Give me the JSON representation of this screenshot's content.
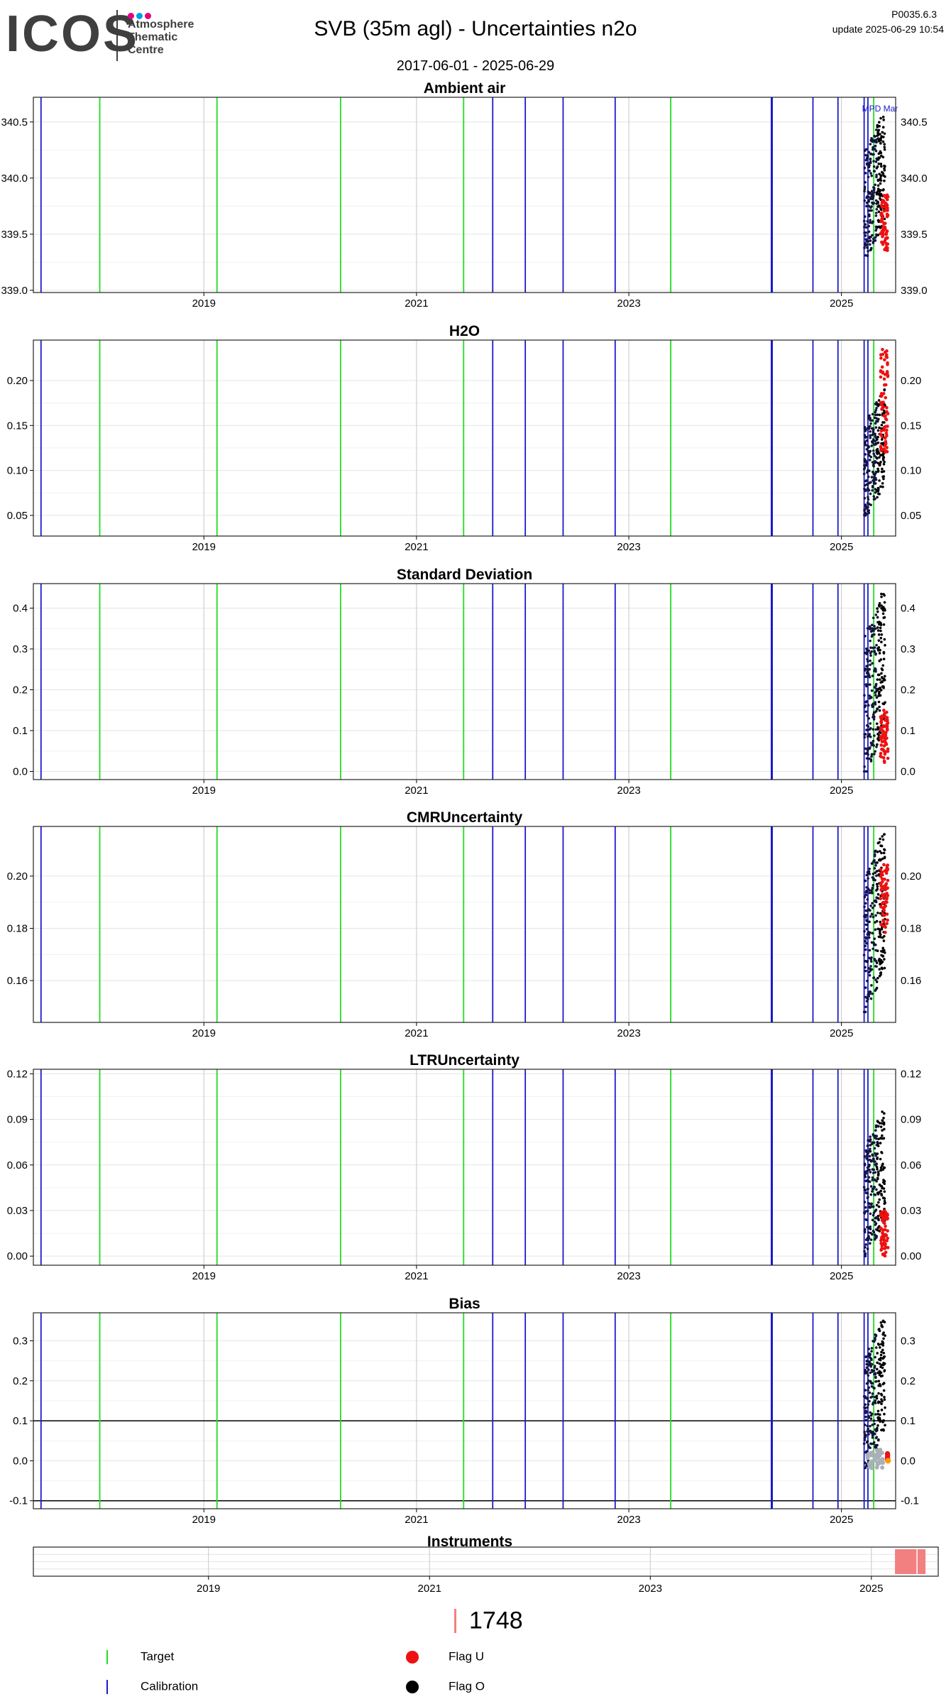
{
  "header": {
    "logo_text": "ICOS",
    "logo_sub": [
      "Atmosphere",
      "Thematic",
      "Centre"
    ],
    "logo_colors": [
      "#e6007e",
      "#00a0e3",
      "#e6007e"
    ],
    "title": "SVB  (35m agl) - Uncertainties n2o",
    "date_range": "2017-06-01 - 2025-06-29",
    "version": "P0035.6.3",
    "update": "update  2025-06-29 10:54"
  },
  "colors": {
    "target": "#22dd22",
    "calibration": "#1a1acc",
    "flag_u": "#ee1111",
    "flag_o": "#000000",
    "ambient_points": "#14143c",
    "bias_gray": "#aab0b8",
    "bias_orange": "#ff9900",
    "instrument": "#f28080"
  },
  "chart_data": [
    {
      "type": "scatter",
      "title": "Ambient air",
      "xlim": [
        "2017-06-01",
        "2025-06-29"
      ],
      "x_ticks": [
        "2019",
        "2021",
        "2023",
        "2025"
      ],
      "ylim": [
        338.98,
        340.72
      ],
      "y_ticks": [
        "339.0",
        "339.5",
        "340.0",
        "340.5"
      ],
      "annotation": "MPD Mar",
      "grid": true,
      "series": [
        {
          "name": "Flag O",
          "values_range": [
            339.3,
            340.55
          ],
          "x_range": [
            "2025-03-20",
            "2025-05-31"
          ]
        },
        {
          "name": "Flag U",
          "values_range": [
            339.35,
            339.85
          ],
          "x_range": [
            "2025-05-15",
            "2025-06-10"
          ]
        }
      ]
    },
    {
      "type": "scatter",
      "title": "H2O",
      "xlim": [
        "2017-06-01",
        "2025-06-29"
      ],
      "x_ticks": [
        "2019",
        "2021",
        "2023",
        "2025"
      ],
      "ylim": [
        0.027,
        0.245
      ],
      "y_ticks": [
        "0.05",
        "0.10",
        "0.15",
        "0.20"
      ],
      "grid": true,
      "series": [
        {
          "name": "Flag O",
          "values_range": [
            0.05,
            0.19
          ],
          "x_range": [
            "2025-03-20",
            "2025-05-31"
          ]
        },
        {
          "name": "Flag U",
          "values_range": [
            0.12,
            0.235
          ],
          "x_range": [
            "2025-05-15",
            "2025-06-10"
          ]
        }
      ]
    },
    {
      "type": "scatter",
      "title": "Standard Deviation",
      "xlim": [
        "2017-06-01",
        "2025-06-29"
      ],
      "x_ticks": [
        "2019",
        "2021",
        "2023",
        "2025"
      ],
      "ylim": [
        -0.02,
        0.46
      ],
      "y_ticks": [
        "0.0",
        "0.1",
        "0.2",
        "0.3",
        "0.4"
      ],
      "grid": true,
      "series": [
        {
          "name": "Flag O",
          "values_range": [
            0.0,
            0.44
          ],
          "x_range": [
            "2025-03-20",
            "2025-05-31"
          ]
        },
        {
          "name": "Flag U",
          "values_range": [
            0.02,
            0.15
          ],
          "x_range": [
            "2025-05-15",
            "2025-06-10"
          ]
        }
      ]
    },
    {
      "type": "scatter",
      "title": "CMRUncertainty",
      "xlim": [
        "2017-06-01",
        "2025-06-29"
      ],
      "x_ticks": [
        "2019",
        "2021",
        "2023",
        "2025"
      ],
      "ylim": [
        0.144,
        0.219
      ],
      "y_ticks": [
        "0.16",
        "0.18",
        "0.20"
      ],
      "grid": true,
      "series": [
        {
          "name": "Flag O",
          "values_range": [
            0.148,
            0.216
          ],
          "x_range": [
            "2025-03-20",
            "2025-05-31"
          ]
        },
        {
          "name": "Flag U",
          "values_range": [
            0.178,
            0.205
          ],
          "x_range": [
            "2025-05-15",
            "2025-06-10"
          ]
        }
      ]
    },
    {
      "type": "scatter",
      "title": "LTRUncertainty",
      "xlim": [
        "2017-06-01",
        "2025-06-29"
      ],
      "x_ticks": [
        "2019",
        "2021",
        "2023",
        "2025"
      ],
      "ylim": [
        -0.006,
        0.123
      ],
      "y_ticks": [
        "0.00",
        "0.03",
        "0.06",
        "0.09",
        "0.12"
      ],
      "grid": true,
      "series": [
        {
          "name": "Flag O",
          "values_range": [
            0.0,
            0.095
          ],
          "x_range": [
            "2025-03-20",
            "2025-05-31"
          ]
        },
        {
          "name": "Flag U",
          "values_range": [
            0.0,
            0.03
          ],
          "x_range": [
            "2025-05-15",
            "2025-06-10"
          ]
        }
      ]
    },
    {
      "type": "scatter",
      "title": "Bias",
      "xlim": [
        "2017-06-01",
        "2025-06-29"
      ],
      "x_ticks": [
        "2019",
        "2021",
        "2023",
        "2025"
      ],
      "ylim": [
        -0.12,
        0.37
      ],
      "y_ticks": [
        "-0.1",
        "0.0",
        "0.1",
        "0.2",
        "0.3"
      ],
      "hlines": [
        0.1,
        -0.1
      ],
      "grid": true,
      "series": [
        {
          "name": "Flag O",
          "values_range": [
            -0.02,
            0.35
          ],
          "x_range": [
            "2025-03-20",
            "2025-05-31"
          ]
        },
        {
          "name": "Flag U",
          "values_range": [
            0.0,
            0.02
          ],
          "x_range": [
            "2025-06-05",
            "2025-06-12"
          ]
        }
      ]
    },
    {
      "type": "bar",
      "title": "Instruments",
      "xlim": [
        "2017-06-01",
        "2025-06-29"
      ],
      "x_ticks": [
        "2019",
        "2021",
        "2023",
        "2025"
      ],
      "bars": [
        {
          "label": "1748",
          "start": "2025-03-20",
          "end": "2025-06-29"
        }
      ]
    }
  ],
  "events": {
    "target": [
      "2018-01-08",
      "2019-02-15",
      "2020-04-15",
      "2021-06-12",
      "2023-05-25",
      "2025-04-22"
    ],
    "calibration": [
      "2017-06-20",
      "2021-09-20",
      "2022-01-10",
      "2022-05-20",
      "2022-11-15",
      "2024-05-05",
      "2024-05-08",
      "2024-09-25",
      "2024-12-20",
      "2025-03-20",
      "2025-04-02"
    ]
  },
  "instrument_legend": {
    "label": "1748"
  },
  "legend": {
    "target": "Target",
    "calibration": "Calibration",
    "flag_u": "Flag U",
    "flag_o": "Flag O"
  }
}
